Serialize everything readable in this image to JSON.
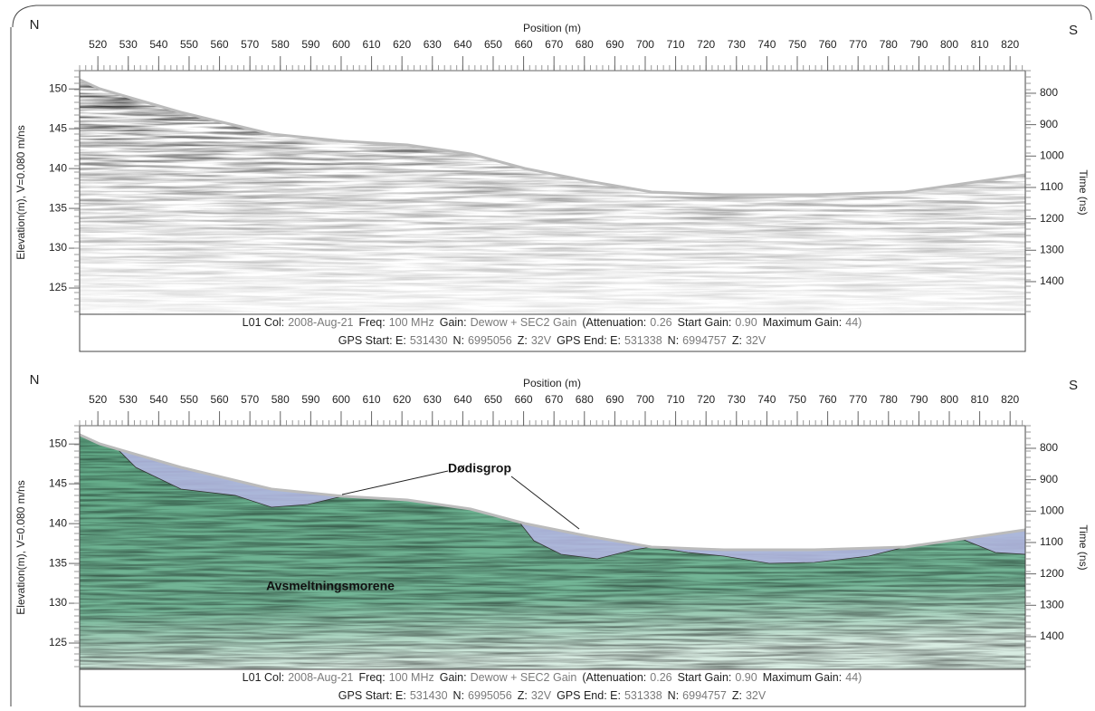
{
  "chart_data": [
    {
      "type": "radargram",
      "left_label": "N",
      "right_label": "S",
      "xlabel": "Position (m)",
      "ylabel": "Elevation(m), V=0.080 m/ns",
      "y2label": "Time (ns)",
      "xlim": [
        514,
        825
      ],
      "xticks": [
        520,
        530,
        540,
        550,
        560,
        570,
        580,
        590,
        600,
        610,
        620,
        630,
        640,
        650,
        660,
        670,
        680,
        690,
        700,
        710,
        720,
        730,
        740,
        750,
        760,
        770,
        780,
        790,
        800,
        810,
        820
      ],
      "ylim": [
        121.7,
        152.3
      ],
      "yticks": [
        125,
        130,
        135,
        140,
        145,
        150
      ],
      "y2lim": [
        1504,
        728
      ],
      "y2ticks": [
        800,
        900,
        1000,
        1100,
        1200,
        1300,
        1400
      ],
      "footer": [
        [
          {
            "label": "L01  Col:",
            "value": "2008-Aug-21"
          },
          {
            "label": "Freq:",
            "value": "100 MHz"
          },
          {
            "label": "Gain:",
            "value": "Dewow + SEC2 Gain"
          },
          {
            "label": "(Attenuation:",
            "value": "0.26"
          },
          {
            "label": "Start Gain:",
            "value": "0.90"
          },
          {
            "label": "Maximum Gain:",
            "value": "44)"
          }
        ],
        [
          {
            "label": "GPS Start:  E:",
            "value": "531430"
          },
          {
            "label": "N:",
            "value": "6995056"
          },
          {
            "label": "Z:",
            "value": "32V"
          },
          {
            "label": "GPS End:  E:",
            "value": "531338"
          },
          {
            "label": "N:",
            "value": "6994757"
          },
          {
            "label": "Z:",
            "value": "32V"
          }
        ]
      ],
      "annotations": []
    },
    {
      "type": "radargram",
      "left_label": "N",
      "right_label": "S",
      "xlabel": "Position (m)",
      "ylabel": "Elevation(m), V=0.080 m/ns",
      "y2label": "Time (ns)",
      "xlim": [
        514,
        825
      ],
      "xticks": [
        520,
        530,
        540,
        550,
        560,
        570,
        580,
        590,
        600,
        610,
        620,
        630,
        640,
        650,
        660,
        670,
        680,
        690,
        700,
        710,
        720,
        730,
        740,
        750,
        760,
        770,
        780,
        790,
        800,
        810,
        820
      ],
      "ylim": [
        121.7,
        152.3
      ],
      "yticks": [
        125,
        130,
        135,
        140,
        145,
        150
      ],
      "y2lim": [
        1504,
        728
      ],
      "y2ticks": [
        800,
        900,
        1000,
        1100,
        1200,
        1300,
        1400
      ],
      "footer": [
        [
          {
            "label": "L01  Col:",
            "value": "2008-Aug-21"
          },
          {
            "label": "Freq:",
            "value": "100 MHz"
          },
          {
            "label": "Gain:",
            "value": "Dewow + SEC2 Gain"
          },
          {
            "label": "(Attenuation:",
            "value": "0.26"
          },
          {
            "label": "Start Gain:",
            "value": "0.90"
          },
          {
            "label": "Maximum Gain:",
            "value": "44)"
          }
        ],
        [
          {
            "label": "GPS Start:  E:",
            "value": "531430"
          },
          {
            "label": "N:",
            "value": "6995056"
          },
          {
            "label": "Z:",
            "value": "32V"
          },
          {
            "label": "GPS End:  E:",
            "value": "531338"
          },
          {
            "label": "N:",
            "value": "6994757"
          },
          {
            "label": "Z:",
            "value": "32V"
          }
        ]
      ],
      "annotations": [
        "Dødisgrop",
        "Avsmeltningsmorene"
      ]
    }
  ]
}
